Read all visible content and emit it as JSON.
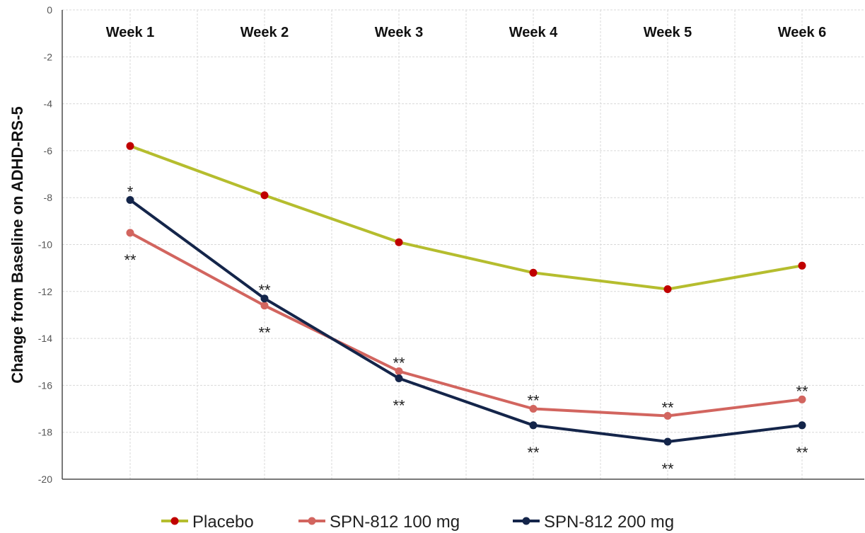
{
  "chart_data": {
    "type": "line",
    "categories": [
      "Week 1",
      "Week 2",
      "Week 3",
      "Week 4",
      "Week 5",
      "Week 6"
    ],
    "ylabel": "Change from Baseline on ADHD-RS-5",
    "ylim": [
      -20,
      0
    ],
    "yticks": [
      0,
      -2,
      -4,
      -6,
      -8,
      -10,
      -12,
      -14,
      -16,
      -18,
      -20
    ],
    "grid": true,
    "legend_position": "bottom",
    "series": [
      {
        "name": "Placebo",
        "values": [
          -5.8,
          -7.9,
          -9.9,
          -11.2,
          -11.9,
          -10.9
        ],
        "line_color": "#b5bd2e",
        "marker_color": "#c00000",
        "annotations": [
          "",
          "",
          "",
          "",
          "",
          ""
        ]
      },
      {
        "name": "SPN-812 100 mg",
        "values": [
          -9.5,
          -12.6,
          -15.4,
          -17.0,
          -17.3,
          -16.6
        ],
        "line_color": "#d2655f",
        "marker_color": "#d2655f",
        "annotations": [
          "**",
          "**",
          "**",
          "**",
          "**",
          "**"
        ]
      },
      {
        "name": "SPN-812 200 mg",
        "values": [
          -8.1,
          -12.3,
          -15.7,
          -17.7,
          -18.4,
          -17.7
        ],
        "line_color": "#14254a",
        "marker_color": "#14254a",
        "annotations": [
          "*",
          "**",
          "**",
          "**",
          "**",
          "**"
        ]
      }
    ]
  }
}
